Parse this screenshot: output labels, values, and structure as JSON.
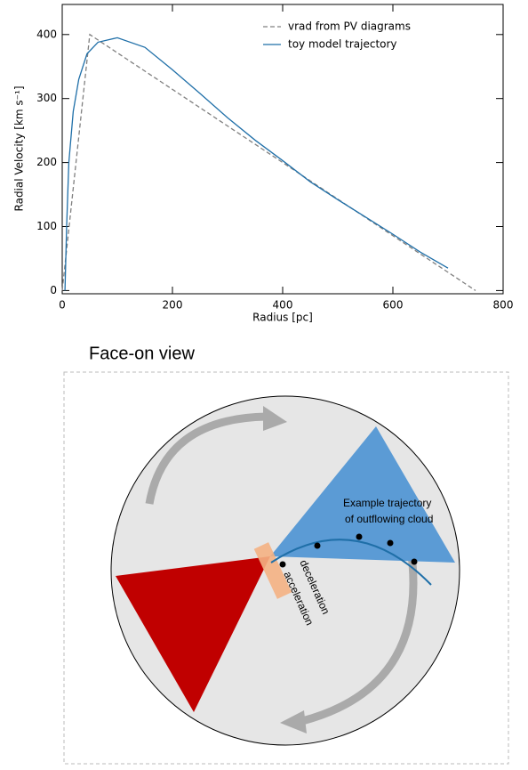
{
  "chart_data": {
    "type": "line",
    "xlabel": "Radius [pc]",
    "ylabel": "Radial Velocity [km s⁻¹]",
    "xlim": [
      0,
      800
    ],
    "ylim": [
      -5,
      447
    ],
    "xticks": [
      0,
      200,
      400,
      600,
      800
    ],
    "yticks": [
      0,
      100,
      200,
      300,
      400
    ],
    "legend": "upper right",
    "series": [
      {
        "name": "vrad from PV diagrams",
        "color": "#808080",
        "dash": true,
        "x": [
          0,
          50,
          750
        ],
        "values": [
          0,
          400,
          0
        ]
      },
      {
        "name": "toy model trajectory",
        "color": "#1f6fa8",
        "dash": false,
        "x": [
          5,
          8,
          12,
          20,
          30,
          45,
          65,
          100,
          150,
          200,
          250,
          300,
          350,
          400,
          450,
          500,
          550,
          600,
          650,
          700
        ],
        "values": [
          0,
          100,
          200,
          280,
          330,
          370,
          388,
          395,
          380,
          345,
          308,
          270,
          235,
          203,
          170,
          142,
          115,
          88,
          60,
          35
        ]
      }
    ]
  },
  "diagram": {
    "title": "Face-on view",
    "trajectory_label": [
      "Example trajectory",
      "of outflowing cloud"
    ],
    "deceleration": "deceleration",
    "acceleration": "acceleration"
  }
}
